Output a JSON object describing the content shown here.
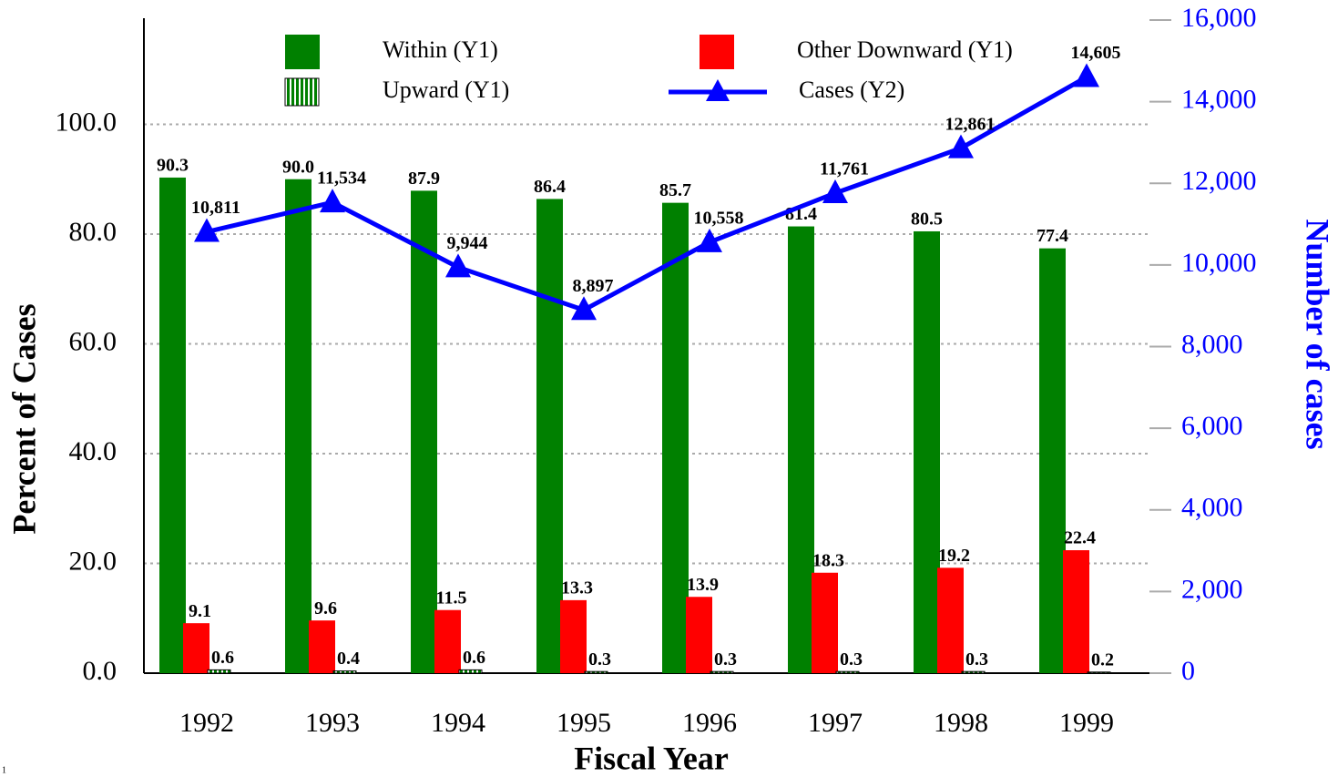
{
  "chart_data": {
    "type": "bar",
    "xlabel": "Fiscal Year",
    "ylabel": "Percent of Cases",
    "y2label": "Number of cases",
    "footnote": "1",
    "categories": [
      "1992",
      "1993",
      "1994",
      "1995",
      "1996",
      "1997",
      "1998",
      "1999"
    ],
    "series": [
      {
        "name": "Within (Y1)",
        "type": "bar",
        "color": "#008000",
        "values": [
          90.3,
          90.0,
          87.9,
          86.4,
          85.7,
          81.4,
          80.5,
          77.4
        ],
        "value_labels": [
          "90.3",
          "90.0",
          "87.9",
          "86.4",
          "85.7",
          "81.4",
          "80.5",
          "77.4"
        ]
      },
      {
        "name": "Other Downward (Y1)",
        "type": "bar",
        "color": "#ff0000",
        "values": [
          9.1,
          9.6,
          11.5,
          13.3,
          13.9,
          18.3,
          19.2,
          22.4
        ],
        "value_labels": [
          "9.1",
          "9.6",
          "11.5",
          "13.3",
          "13.9",
          "18.3",
          "19.2",
          "22.4"
        ]
      },
      {
        "name": "Upward (Y1)",
        "type": "bar",
        "color": "#008000",
        "hatch": true,
        "values": [
          0.6,
          0.4,
          0.6,
          0.3,
          0.3,
          0.3,
          0.3,
          0.2
        ],
        "value_labels": [
          "0.6",
          "0.4",
          "0.6",
          "0.3",
          "0.3",
          "0.3",
          "0.3",
          "0.2"
        ]
      },
      {
        "name": "Cases (Y2)",
        "type": "line",
        "axis": "y2",
        "color": "#0000ff",
        "values": [
          10811,
          11534,
          9944,
          8897,
          10558,
          11761,
          12861,
          14605
        ],
        "value_labels": [
          "10,811",
          "11,534",
          "9,944",
          "8,897",
          "10,558",
          "11,761",
          "12,861",
          "14,605"
        ]
      }
    ],
    "ylim": [
      0,
      119
    ],
    "yticks": [
      {
        "value": 0,
        "label": "0.0"
      },
      {
        "value": 20,
        "label": "20.0"
      },
      {
        "value": 40,
        "label": "40.0"
      },
      {
        "value": 60,
        "label": "60.0"
      },
      {
        "value": 80,
        "label": "80.0"
      },
      {
        "value": 100,
        "label": "100.0"
      }
    ],
    "y2lim": [
      0,
      16000
    ],
    "y2ticks": [
      0,
      {
        "value": 2000,
        "label": "2,000"
      },
      {
        "value": 4000,
        "label": "4,000"
      },
      {
        "value": 6000,
        "label": "6,000"
      },
      {
        "value": 8000,
        "label": "8,000"
      },
      {
        "value": 10000,
        "label": "10,000"
      },
      {
        "value": 12000,
        "label": "12,000"
      },
      {
        "value": 14000,
        "label": "14,000"
      },
      {
        "value": 16000,
        "label": "16,000"
      }
    ],
    "grid": true
  }
}
